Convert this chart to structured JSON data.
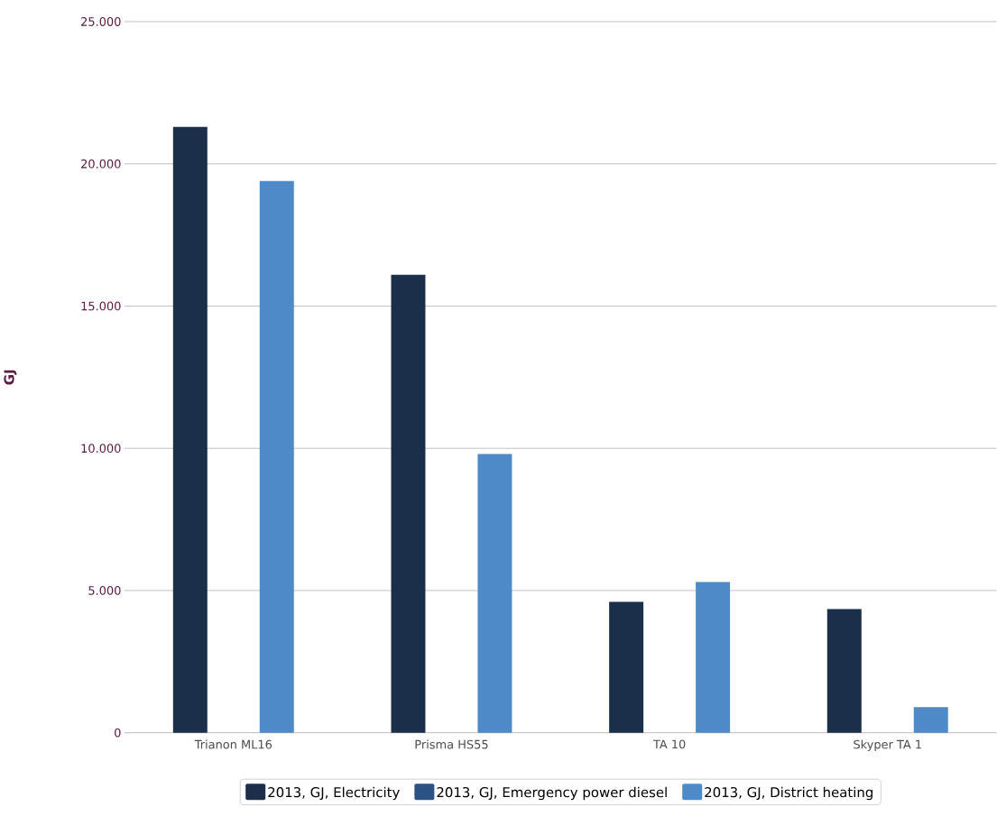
{
  "chart_data": {
    "type": "bar",
    "ylabel": "GJ",
    "categories": [
      "Trianon ML16",
      "Prisma HS55",
      "TA 10",
      "Skyper TA 1"
    ],
    "series": [
      {
        "name": "2013, GJ, Electricity",
        "color": "#1b2f4b",
        "values": [
          21300,
          16100,
          4600,
          4350
        ]
      },
      {
        "name": "2013, GJ, Emergency power diesel",
        "color": "#2b5283",
        "values": [
          0,
          0,
          0,
          0
        ]
      },
      {
        "name": "2013, GJ, District heating",
        "color": "#4e89c8",
        "values": [
          19400,
          9800,
          5300,
          900
        ]
      }
    ],
    "ylim": [
      0,
      25000
    ],
    "yticks": [
      {
        "value": 0,
        "label": "0"
      },
      {
        "value": 5000,
        "label": "5.000"
      },
      {
        "value": 10000,
        "label": "10.000"
      },
      {
        "value": 15000,
        "label": "15.000"
      },
      {
        "value": 20000,
        "label": "20.000"
      },
      {
        "value": 25000,
        "label": "25.000"
      }
    ],
    "grid": "y",
    "legend": "bottom"
  }
}
